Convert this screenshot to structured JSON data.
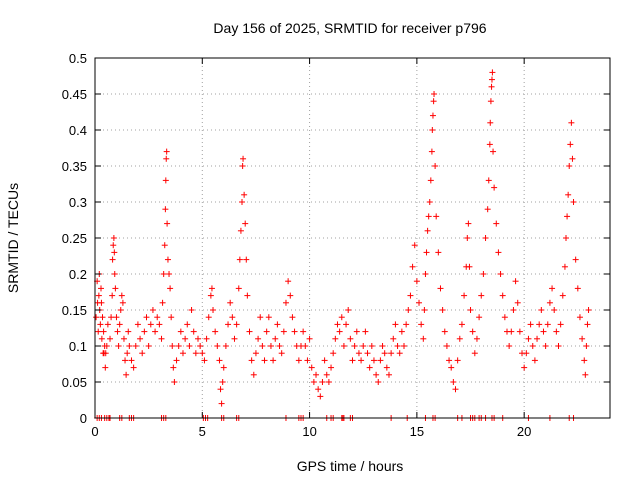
{
  "chart_data": {
    "type": "scatter",
    "title": "Day 156 of 2025, SRMTID for receiver p796",
    "xlabel": "GPS time / hours",
    "ylabel": "SRMTID / TECUs",
    "xlim": [
      0,
      24
    ],
    "ylim": [
      0,
      0.5
    ],
    "x_ticks": [
      0,
      5,
      10,
      15,
      20
    ],
    "x_tick_labels": [
      "0",
      "5",
      "10",
      "15",
      "20"
    ],
    "y_ticks": [
      0,
      0.05,
      0.1,
      0.15,
      0.2,
      0.25,
      0.3,
      0.35,
      0.4,
      0.45,
      0.5
    ],
    "y_tick_labels": [
      "0",
      "0.05",
      "0.1",
      "0.15",
      "0.2",
      "0.25",
      "0.3",
      "0.35",
      "0.4",
      "0.45",
      "0.5"
    ],
    "grid": true,
    "marker": "+",
    "series_color": "#ff0000",
    "baseline_x": [
      0.1,
      0.2,
      0.3,
      0.45,
      0.55,
      0.65,
      0.7,
      1.15,
      1.25,
      1.6,
      1.7,
      1.8,
      3.1,
      3.2,
      3.3,
      5.05,
      5.15,
      5.25,
      5.9,
      6.0,
      6.6,
      6.7,
      8.9,
      9.5,
      9.6,
      9.7,
      10.8,
      11.0,
      11.1,
      11.5,
      11.55,
      11.6,
      11.9,
      12.0,
      13.8,
      14.55,
      15.4,
      15.75,
      15.85,
      16.9,
      17.1,
      17.5,
      17.6,
      17.7,
      17.9,
      18.0,
      18.2,
      18.5,
      18.6,
      19.0,
      20.2,
      21.2,
      22.1,
      22.3
    ],
    "points": [
      [
        0.05,
        0.14
      ],
      [
        0.1,
        0.19
      ],
      [
        0.12,
        0.16
      ],
      [
        0.15,
        0.12
      ],
      [
        0.18,
        0.17
      ],
      [
        0.2,
        0.2
      ],
      [
        0.22,
        0.15
      ],
      [
        0.25,
        0.13
      ],
      [
        0.28,
        0.18
      ],
      [
        0.3,
        0.16
      ],
      [
        0.32,
        0.11
      ],
      [
        0.35,
        0.14
      ],
      [
        0.38,
        0.09
      ],
      [
        0.4,
        0.12
      ],
      [
        0.42,
        0.09
      ],
      [
        0.45,
        0.1
      ],
      [
        0.48,
        0.07
      ],
      [
        0.5,
        0.09
      ],
      [
        0.55,
        0.1
      ],
      [
        0.6,
        0.13
      ],
      [
        0.7,
        0.11
      ],
      [
        0.75,
        0.14
      ],
      [
        0.8,
        0.17
      ],
      [
        0.82,
        0.22
      ],
      [
        0.85,
        0.24
      ],
      [
        0.88,
        0.25
      ],
      [
        0.9,
        0.23
      ],
      [
        0.92,
        0.2
      ],
      [
        0.95,
        0.18
      ],
      [
        1.0,
        0.14
      ],
      [
        1.05,
        0.12
      ],
      [
        1.1,
        0.1
      ],
      [
        1.15,
        0.13
      ],
      [
        1.2,
        0.15
      ],
      [
        1.25,
        0.17
      ],
      [
        1.3,
        0.16
      ],
      [
        1.35,
        0.11
      ],
      [
        1.4,
        0.08
      ],
      [
        1.45,
        0.06
      ],
      [
        1.5,
        0.09
      ],
      [
        1.55,
        0.12
      ],
      [
        1.6,
        0.1
      ],
      [
        1.7,
        0.08
      ],
      [
        1.8,
        0.07
      ],
      [
        1.9,
        0.1
      ],
      [
        2.0,
        0.13
      ],
      [
        2.1,
        0.11
      ],
      [
        2.2,
        0.09
      ],
      [
        2.3,
        0.12
      ],
      [
        2.4,
        0.14
      ],
      [
        2.5,
        0.1
      ],
      [
        2.6,
        0.13
      ],
      [
        2.7,
        0.15
      ],
      [
        2.8,
        0.12
      ],
      [
        2.9,
        0.14
      ],
      [
        3.0,
        0.13
      ],
      [
        3.1,
        0.11
      ],
      [
        3.15,
        0.16
      ],
      [
        3.2,
        0.2
      ],
      [
        3.25,
        0.24
      ],
      [
        3.28,
        0.29
      ],
      [
        3.3,
        0.33
      ],
      [
        3.32,
        0.36
      ],
      [
        3.34,
        0.37
      ],
      [
        3.36,
        0.27
      ],
      [
        3.4,
        0.22
      ],
      [
        3.45,
        0.2
      ],
      [
        3.5,
        0.18
      ],
      [
        3.55,
        0.14
      ],
      [
        3.6,
        0.1
      ],
      [
        3.65,
        0.07
      ],
      [
        3.7,
        0.05
      ],
      [
        3.8,
        0.08
      ],
      [
        3.9,
        0.1
      ],
      [
        4.0,
        0.12
      ],
      [
        4.1,
        0.09
      ],
      [
        4.2,
        0.11
      ],
      [
        4.3,
        0.13
      ],
      [
        4.4,
        0.1
      ],
      [
        4.5,
        0.15
      ],
      [
        4.6,
        0.12
      ],
      [
        4.7,
        0.09
      ],
      [
        4.8,
        0.11
      ],
      [
        4.9,
        0.1
      ],
      [
        5.0,
        0.09
      ],
      [
        5.1,
        0.08
      ],
      [
        5.2,
        0.11
      ],
      [
        5.3,
        0.14
      ],
      [
        5.4,
        0.17
      ],
      [
        5.45,
        0.18
      ],
      [
        5.5,
        0.15
      ],
      [
        5.6,
        0.12
      ],
      [
        5.7,
        0.1
      ],
      [
        5.8,
        0.08
      ],
      [
        5.85,
        0.04
      ],
      [
        5.9,
        0.02
      ],
      [
        5.95,
        0.05
      ],
      [
        6.0,
        0.07
      ],
      [
        6.1,
        0.1
      ],
      [
        6.2,
        0.13
      ],
      [
        6.3,
        0.16
      ],
      [
        6.4,
        0.14
      ],
      [
        6.5,
        0.11
      ],
      [
        6.6,
        0.13
      ],
      [
        6.7,
        0.18
      ],
      [
        6.75,
        0.22
      ],
      [
        6.8,
        0.26
      ],
      [
        6.85,
        0.3
      ],
      [
        6.88,
        0.35
      ],
      [
        6.9,
        0.36
      ],
      [
        6.95,
        0.31
      ],
      [
        7.0,
        0.27
      ],
      [
        7.05,
        0.22
      ],
      [
        7.1,
        0.17
      ],
      [
        7.2,
        0.12
      ],
      [
        7.3,
        0.08
      ],
      [
        7.4,
        0.06
      ],
      [
        7.5,
        0.09
      ],
      [
        7.6,
        0.11
      ],
      [
        7.7,
        0.14
      ],
      [
        7.8,
        0.1
      ],
      [
        7.9,
        0.08
      ],
      [
        8.0,
        0.12
      ],
      [
        8.1,
        0.14
      ],
      [
        8.2,
        0.1
      ],
      [
        8.3,
        0.08
      ],
      [
        8.4,
        0.11
      ],
      [
        8.5,
        0.13
      ],
      [
        8.6,
        0.1
      ],
      [
        8.7,
        0.09
      ],
      [
        8.8,
        0.12
      ],
      [
        8.9,
        0.16
      ],
      [
        9.0,
        0.19
      ],
      [
        9.1,
        0.17
      ],
      [
        9.2,
        0.14
      ],
      [
        9.3,
        0.12
      ],
      [
        9.4,
        0.1
      ],
      [
        9.5,
        0.08
      ],
      [
        9.6,
        0.1
      ],
      [
        9.7,
        0.12
      ],
      [
        9.8,
        0.1
      ],
      [
        9.9,
        0.08
      ],
      [
        10.0,
        0.11
      ],
      [
        10.1,
        0.07
      ],
      [
        10.2,
        0.05
      ],
      [
        10.3,
        0.06
      ],
      [
        10.4,
        0.04
      ],
      [
        10.5,
        0.03
      ],
      [
        10.6,
        0.05
      ],
      [
        10.7,
        0.08
      ],
      [
        10.8,
        0.06
      ],
      [
        10.9,
        0.05
      ],
      [
        11.0,
        0.07
      ],
      [
        11.1,
        0.09
      ],
      [
        11.2,
        0.11
      ],
      [
        11.3,
        0.13
      ],
      [
        11.4,
        0.12
      ],
      [
        11.5,
        0.14
      ],
      [
        11.6,
        0.1
      ],
      [
        11.7,
        0.13
      ],
      [
        11.8,
        0.15
      ],
      [
        11.9,
        0.11
      ],
      [
        12.0,
        0.08
      ],
      [
        12.1,
        0.1
      ],
      [
        12.2,
        0.12
      ],
      [
        12.3,
        0.09
      ],
      [
        12.4,
        0.08
      ],
      [
        12.5,
        0.1
      ],
      [
        12.6,
        0.12
      ],
      [
        12.7,
        0.09
      ],
      [
        12.8,
        0.07
      ],
      [
        12.9,
        0.1
      ],
      [
        13.0,
        0.08
      ],
      [
        13.1,
        0.06
      ],
      [
        13.2,
        0.05
      ],
      [
        13.3,
        0.08
      ],
      [
        13.4,
        0.1
      ],
      [
        13.5,
        0.09
      ],
      [
        13.6,
        0.07
      ],
      [
        13.7,
        0.06
      ],
      [
        13.8,
        0.09
      ],
      [
        13.9,
        0.11
      ],
      [
        14.0,
        0.13
      ],
      [
        14.1,
        0.1
      ],
      [
        14.2,
        0.09
      ],
      [
        14.3,
        0.12
      ],
      [
        14.4,
        0.1
      ],
      [
        14.5,
        0.13
      ],
      [
        14.6,
        0.15
      ],
      [
        14.7,
        0.17
      ],
      [
        14.8,
        0.21
      ],
      [
        14.9,
        0.24
      ],
      [
        15.0,
        0.19
      ],
      [
        15.1,
        0.16
      ],
      [
        15.2,
        0.13
      ],
      [
        15.3,
        0.11
      ],
      [
        15.35,
        0.15
      ],
      [
        15.4,
        0.2
      ],
      [
        15.45,
        0.23
      ],
      [
        15.5,
        0.26
      ],
      [
        15.55,
        0.28
      ],
      [
        15.6,
        0.3
      ],
      [
        15.65,
        0.33
      ],
      [
        15.7,
        0.37
      ],
      [
        15.72,
        0.4
      ],
      [
        15.75,
        0.42
      ],
      [
        15.78,
        0.44
      ],
      [
        15.8,
        0.45
      ],
      [
        15.85,
        0.35
      ],
      [
        15.9,
        0.28
      ],
      [
        16.0,
        0.23
      ],
      [
        16.1,
        0.18
      ],
      [
        16.2,
        0.15
      ],
      [
        16.3,
        0.12
      ],
      [
        16.4,
        0.1
      ],
      [
        16.5,
        0.08
      ],
      [
        16.6,
        0.07
      ],
      [
        16.7,
        0.05
      ],
      [
        16.8,
        0.04
      ],
      [
        16.9,
        0.08
      ],
      [
        17.0,
        0.11
      ],
      [
        17.1,
        0.13
      ],
      [
        17.2,
        0.17
      ],
      [
        17.3,
        0.21
      ],
      [
        17.35,
        0.25
      ],
      [
        17.4,
        0.27
      ],
      [
        17.45,
        0.21
      ],
      [
        17.5,
        0.15
      ],
      [
        17.6,
        0.12
      ],
      [
        17.7,
        0.09
      ],
      [
        17.8,
        0.11
      ],
      [
        17.9,
        0.14
      ],
      [
        18.0,
        0.17
      ],
      [
        18.1,
        0.2
      ],
      [
        18.2,
        0.25
      ],
      [
        18.3,
        0.29
      ],
      [
        18.35,
        0.33
      ],
      [
        18.4,
        0.38
      ],
      [
        18.42,
        0.41
      ],
      [
        18.45,
        0.44
      ],
      [
        18.48,
        0.46
      ],
      [
        18.5,
        0.47
      ],
      [
        18.52,
        0.48
      ],
      [
        18.55,
        0.37
      ],
      [
        18.6,
        0.32
      ],
      [
        18.7,
        0.27
      ],
      [
        18.8,
        0.23
      ],
      [
        18.9,
        0.2
      ],
      [
        19.0,
        0.17
      ],
      [
        19.1,
        0.14
      ],
      [
        19.2,
        0.12
      ],
      [
        19.3,
        0.1
      ],
      [
        19.4,
        0.12
      ],
      [
        19.5,
        0.15
      ],
      [
        19.6,
        0.19
      ],
      [
        19.7,
        0.16
      ],
      [
        19.8,
        0.12
      ],
      [
        19.9,
        0.09
      ],
      [
        20.0,
        0.07
      ],
      [
        20.1,
        0.09
      ],
      [
        20.2,
        0.11
      ],
      [
        20.3,
        0.13
      ],
      [
        20.4,
        0.1
      ],
      [
        20.5,
        0.08
      ],
      [
        20.6,
        0.11
      ],
      [
        20.7,
        0.13
      ],
      [
        20.8,
        0.15
      ],
      [
        20.9,
        0.12
      ],
      [
        21.0,
        0.1
      ],
      [
        21.1,
        0.13
      ],
      [
        21.2,
        0.16
      ],
      [
        21.3,
        0.18
      ],
      [
        21.4,
        0.15
      ],
      [
        21.5,
        0.12
      ],
      [
        21.6,
        0.1
      ],
      [
        21.7,
        0.13
      ],
      [
        21.8,
        0.17
      ],
      [
        21.9,
        0.21
      ],
      [
        21.95,
        0.25
      ],
      [
        22.0,
        0.28
      ],
      [
        22.05,
        0.31
      ],
      [
        22.1,
        0.35
      ],
      [
        22.15,
        0.38
      ],
      [
        22.2,
        0.41
      ],
      [
        22.25,
        0.36
      ],
      [
        22.3,
        0.3
      ],
      [
        22.4,
        0.22
      ],
      [
        22.5,
        0.18
      ],
      [
        22.6,
        0.14
      ],
      [
        22.7,
        0.11
      ],
      [
        22.8,
        0.08
      ],
      [
        22.85,
        0.06
      ],
      [
        22.9,
        0.1
      ],
      [
        22.95,
        0.13
      ],
      [
        23.0,
        0.15
      ]
    ]
  }
}
